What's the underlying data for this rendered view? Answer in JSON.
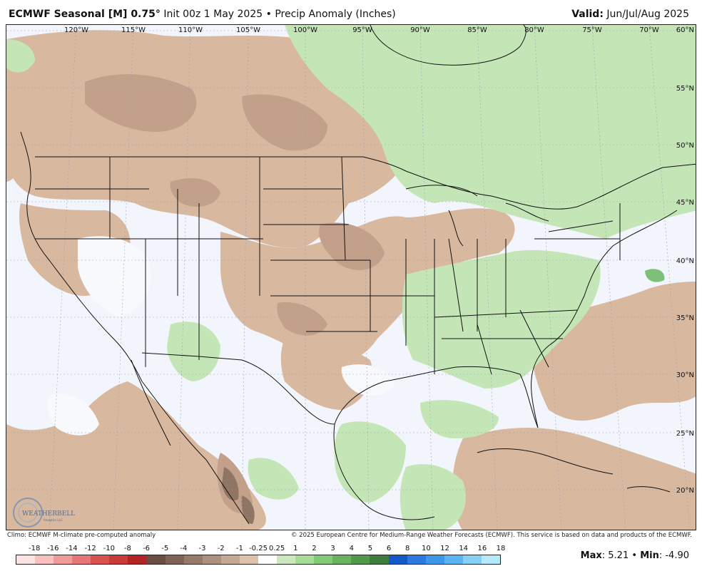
{
  "header": {
    "model": "ECMWF Seasonal [M] 0.75",
    "degree": "°",
    "init": "Init 00z 1 May 2025",
    "bullet": "•",
    "product": "Precip Anomaly (Inches)",
    "valid_label": "Valid:",
    "valid_value": "Jun/Jul/Aug 2025"
  },
  "map": {
    "lon_labels": [
      "120°W",
      "115°W",
      "110°W",
      "105°W",
      "100°W",
      "95°W",
      "90°W",
      "85°W",
      "80°W",
      "75°W",
      "70°W"
    ],
    "lat_labels": [
      "60°N",
      "55°N",
      "50°N",
      "45°N",
      "40°N",
      "35°N",
      "30°N",
      "25°N",
      "20°N"
    ],
    "logo_text": "WEATHERBELL",
    "logo_sub": "Analytics LLC"
  },
  "credits": {
    "left": "Climo: ECMWF M-climate pre-computed anomaly",
    "right": "© 2025 European Centre for Medium-Range Weather Forecasts (ECMWF). This service is based on data and products of the ECMWF."
  },
  "legend": {
    "ticks": [
      "-18",
      "-16",
      "-14",
      "-12",
      "-10",
      "-8",
      "-6",
      "-5",
      "-4",
      "-3",
      "-2",
      "-1",
      "-0.25",
      "0.25",
      "1",
      "2",
      "3",
      "4",
      "5",
      "6",
      "8",
      "10",
      "12",
      "14",
      "16",
      "18"
    ],
    "colors": [
      "#fde4e4",
      "#f9c0c0",
      "#f19a9a",
      "#e77676",
      "#d95252",
      "#c93a3a",
      "#b32424",
      "#6a4e44",
      "#7e6356",
      "#967a6a",
      "#ad9180",
      "#c4a995",
      "#dcc2ab",
      "#ffffff",
      "#cde8c0",
      "#a8dc98",
      "#84c975",
      "#69b35d",
      "#51994b",
      "#3e7d3d",
      "#1558c8",
      "#2a7ae0",
      "#3e98ea",
      "#5cb4f1",
      "#86d0f5",
      "#b6e9fa"
    ],
    "max_label": "Max",
    "max_value": "5.21",
    "min_label": "Min",
    "min_value": "-4.90",
    "sep": "•"
  }
}
